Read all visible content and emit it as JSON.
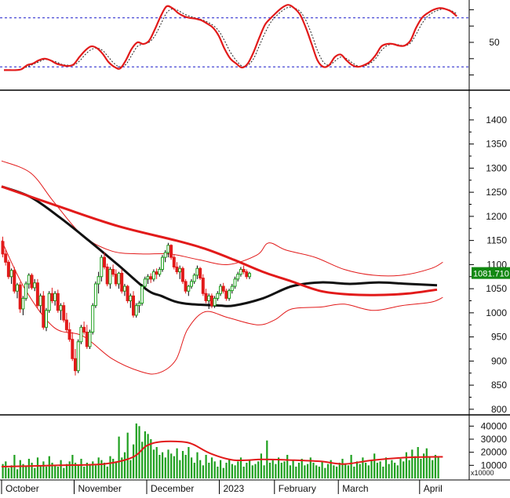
{
  "chart_data": [
    {
      "type": "line",
      "panel": "stochastic oscillator",
      "reference_levels": [
        20,
        80
      ],
      "y_tick_labels": [
        "50"
      ],
      "ylim": [
        0,
        100
      ],
      "series": [
        {
          "color": "#e21a1a",
          "values": [
            16,
            16,
            16,
            17,
            22,
            24,
            28,
            30,
            28,
            24,
            22,
            21,
            23,
            32,
            40,
            45,
            43,
            36,
            26,
            20,
            18,
            28,
            42,
            50,
            48,
            52,
            66,
            82,
            94,
            92,
            86,
            82,
            80,
            79,
            77,
            73,
            68,
            58,
            42,
            30,
            24,
            19,
            24,
            38,
            56,
            72,
            80,
            87,
            93,
            96,
            92,
            84,
            68,
            48,
            28,
            20,
            22,
            32,
            35,
            28,
            22,
            20,
            22,
            26,
            34,
            45,
            48,
            48,
            46,
            46,
            52,
            68,
            80,
            86,
            90,
            92,
            91,
            88,
            82
          ]
        },
        {
          "color": "#222222",
          "dashed": true,
          "values": [
            16,
            16,
            16,
            17,
            20,
            23,
            26,
            29,
            28,
            26,
            23,
            22,
            22,
            27,
            35,
            41,
            43,
            40,
            32,
            24,
            20,
            23,
            34,
            45,
            48,
            50,
            58,
            72,
            86,
            91,
            89,
            85,
            82,
            80,
            78,
            75,
            71,
            64,
            52,
            38,
            28,
            21,
            22,
            30,
            46,
            62,
            75,
            83,
            89,
            93,
            92,
            88,
            77,
            60,
            40,
            26,
            22,
            27,
            32,
            30,
            25,
            21,
            21,
            24,
            30,
            40,
            46,
            48,
            47,
            46,
            49,
            60,
            73,
            82,
            87,
            90,
            91,
            89,
            85
          ]
        }
      ]
    },
    {
      "type": "candlestick",
      "panel": "price",
      "ylim": [
        790,
        1460
      ],
      "y_ticks": [
        800,
        850,
        900,
        950,
        1000,
        1050,
        1100,
        1150,
        1200,
        1250,
        1300,
        1350,
        1400
      ],
      "last_price_label": "1081.710",
      "last_price": 1081.71,
      "candle_colors": {
        "up": "#1fa01f",
        "down": "#e21a1a"
      },
      "candles": [
        [
          1148,
          1158,
          1115,
          1122
        ],
        [
          1122,
          1130,
          1098,
          1105
        ],
        [
          1105,
          1110,
          1070,
          1075
        ],
        [
          1075,
          1092,
          1060,
          1088
        ],
        [
          1088,
          1095,
          1040,
          1045
        ],
        [
          1045,
          1062,
          1030,
          1058
        ],
        [
          1058,
          1064,
          1000,
          1008
        ],
        [
          1008,
          1035,
          995,
          1030
        ],
        [
          1030,
          1065,
          1025,
          1060
        ],
        [
          1060,
          1082,
          1050,
          1078
        ],
        [
          1078,
          1082,
          1048,
          1052
        ],
        [
          1052,
          1070,
          1045,
          1062
        ],
        [
          1062,
          1070,
          1010,
          1015
        ],
        [
          1015,
          1040,
          1000,
          1035
        ],
        [
          1035,
          1045,
          965,
          970
        ],
        [
          970,
          1010,
          962,
          1005
        ],
        [
          1005,
          1045,
          1000,
          1040
        ],
        [
          1040,
          1052,
          1020,
          1025
        ],
        [
          1025,
          1045,
          1015,
          1040
        ],
        [
          1040,
          1048,
          1000,
          1005
        ],
        [
          1005,
          1020,
          985,
          1015
        ],
        [
          1015,
          1022,
          980,
          985
        ],
        [
          985,
          1000,
          960,
          965
        ],
        [
          965,
          980,
          940,
          945
        ],
        [
          945,
          960,
          900,
          905
        ],
        [
          905,
          925,
          870,
          880
        ],
        [
          880,
          945,
          875,
          940
        ],
        [
          940,
          975,
          935,
          970
        ],
        [
          970,
          982,
          955,
          960
        ],
        [
          960,
          975,
          925,
          930
        ],
        [
          930,
          965,
          925,
          960
        ],
        [
          960,
          1020,
          955,
          1015
        ],
        [
          1015,
          1065,
          1010,
          1060
        ],
        [
          1060,
          1085,
          1040,
          1075
        ],
        [
          1075,
          1120,
          1065,
          1115
        ],
        [
          1115,
          1125,
          1090,
          1095
        ],
        [
          1095,
          1102,
          1055,
          1060
        ],
        [
          1060,
          1095,
          1050,
          1090
        ],
        [
          1090,
          1100,
          1075,
          1080
        ],
        [
          1080,
          1090,
          1055,
          1060
        ],
        [
          1060,
          1085,
          1050,
          1082
        ],
        [
          1082,
          1090,
          1040,
          1045
        ],
        [
          1045,
          1060,
          1035,
          1055
        ],
        [
          1055,
          1058,
          1020,
          1025
        ],
        [
          1025,
          1040,
          1010,
          1035
        ],
        [
          1035,
          1045,
          990,
          995
        ],
        [
          995,
          1020,
          990,
          1015
        ],
        [
          1015,
          1025,
          1000,
          1020
        ],
        [
          1020,
          1060,
          1015,
          1055
        ],
        [
          1055,
          1075,
          1048,
          1070
        ],
        [
          1070,
          1080,
          1060,
          1075
        ],
        [
          1075,
          1082,
          1062,
          1070
        ],
        [
          1070,
          1090,
          1065,
          1085
        ],
        [
          1085,
          1092,
          1070,
          1080
        ],
        [
          1080,
          1095,
          1075,
          1090
        ],
        [
          1090,
          1120,
          1085,
          1115
        ],
        [
          1115,
          1130,
          1105,
          1125
        ],
        [
          1125,
          1145,
          1115,
          1140
        ],
        [
          1140,
          1142,
          1110,
          1115
        ],
        [
          1115,
          1120,
          1090,
          1095
        ],
        [
          1095,
          1105,
          1080,
          1085
        ],
        [
          1085,
          1098,
          1070,
          1092
        ],
        [
          1092,
          1096,
          1060,
          1065
        ],
        [
          1065,
          1070,
          1040,
          1045
        ],
        [
          1045,
          1058,
          1035,
          1055
        ],
        [
          1055,
          1070,
          1050,
          1065
        ],
        [
          1065,
          1082,
          1060,
          1078
        ],
        [
          1078,
          1098,
          1070,
          1092
        ],
        [
          1092,
          1095,
          1068,
          1072
        ],
        [
          1072,
          1080,
          1035,
          1040
        ],
        [
          1040,
          1050,
          1020,
          1025
        ],
        [
          1025,
          1040,
          1008,
          1035
        ],
        [
          1035,
          1040,
          1010,
          1015
        ],
        [
          1015,
          1035,
          1010,
          1030
        ],
        [
          1030,
          1045,
          1025,
          1040
        ],
        [
          1040,
          1060,
          1035,
          1055
        ],
        [
          1055,
          1062,
          1040,
          1045
        ],
        [
          1045,
          1050,
          1025,
          1030
        ],
        [
          1030,
          1050,
          1025,
          1046
        ],
        [
          1046,
          1060,
          1040,
          1055
        ],
        [
          1055,
          1075,
          1050,
          1070
        ],
        [
          1070,
          1085,
          1065,
          1080
        ],
        [
          1080,
          1095,
          1075,
          1090
        ],
        [
          1090,
          1098,
          1080,
          1085
        ],
        [
          1085,
          1090,
          1070,
          1075
        ],
        [
          1075,
          1085,
          1070,
          1081.71
        ]
      ],
      "moving_averages": [
        {
          "color": "#111111",
          "points": [
            [
              0,
              1262
            ],
            [
              10,
              1240
            ],
            [
              20,
              1198
            ],
            [
              30,
              1150
            ],
            [
              40,
              1100
            ],
            [
              50,
              1048
            ],
            [
              55,
              1035
            ],
            [
              60,
              1023
            ],
            [
              65,
              1018
            ],
            [
              75,
              1015
            ],
            [
              80,
              1015
            ],
            [
              90,
              1030
            ],
            [
              100,
              1055
            ],
            [
              110,
              1063
            ],
            [
              120,
              1060
            ],
            [
              130,
              1063
            ],
            [
              140,
              1060
            ],
            [
              150,
              1057
            ]
          ]
        },
        {
          "color": "#e21a1a",
          "points": [
            [
              0,
              1262
            ],
            [
              20,
              1220
            ],
            [
              40,
              1180
            ],
            [
              60,
              1150
            ],
            [
              70,
              1133
            ],
            [
              80,
              1110
            ],
            [
              90,
              1085
            ],
            [
              100,
              1065
            ],
            [
              110,
              1045
            ],
            [
              120,
              1038
            ],
            [
              130,
              1037
            ],
            [
              140,
              1040
            ],
            [
              150,
              1048
            ]
          ]
        }
      ],
      "bollinger_bands": {
        "color": "#e21a1a",
        "upper": [
          [
            0,
            1315
          ],
          [
            10,
            1290
          ],
          [
            18,
            1230
          ],
          [
            28,
            1160
          ],
          [
            38,
            1128
          ],
          [
            48,
            1122
          ],
          [
            58,
            1122
          ],
          [
            68,
            1110
          ],
          [
            78,
            1100
          ],
          [
            88,
            1120
          ],
          [
            92,
            1145
          ],
          [
            98,
            1130
          ],
          [
            108,
            1115
          ],
          [
            118,
            1090
          ],
          [
            128,
            1078
          ],
          [
            138,
            1078
          ],
          [
            148,
            1092
          ],
          [
            152,
            1105
          ]
        ],
        "lower": [
          [
            0,
            1150
          ],
          [
            8,
            1050
          ],
          [
            18,
            970
          ],
          [
            28,
            952
          ],
          [
            38,
            905
          ],
          [
            48,
            878
          ],
          [
            54,
            875
          ],
          [
            60,
            902
          ],
          [
            64,
            965
          ],
          [
            70,
            1002
          ],
          [
            78,
            990
          ],
          [
            88,
            975
          ],
          [
            94,
            985
          ],
          [
            100,
            1008
          ],
          [
            110,
            1012
          ],
          [
            118,
            1018
          ],
          [
            128,
            1005
          ],
          [
            138,
            1015
          ],
          [
            148,
            1022
          ],
          [
            152,
            1032
          ]
        ]
      }
    },
    {
      "type": "bar",
      "panel": "volume",
      "unit_label": "x10000",
      "ylim": [
        0,
        45000
      ],
      "y_ticks": [
        10000,
        20000,
        30000,
        40000
      ],
      "x_labels": [
        {
          "label": "October",
          "index": 0
        },
        {
          "label": "November",
          "index": 25
        },
        {
          "label": "December",
          "index": 50
        },
        {
          "label": "2023",
          "index": 75
        },
        {
          "label": "February",
          "index": 94
        },
        {
          "label": "March",
          "index": 116
        },
        {
          "label": "April",
          "index": 144
        }
      ],
      "values": [
        11000,
        13000,
        8000,
        10000,
        18000,
        7000,
        14000,
        11000,
        9000,
        15000,
        12000,
        8000,
        16000,
        10000,
        13000,
        9000,
        17000,
        12000,
        10000,
        9000,
        14000,
        8000,
        11000,
        13000,
        18000,
        12000,
        10000,
        15000,
        9000,
        12000,
        11000,
        13000,
        10000,
        16000,
        14000,
        12000,
        9000,
        17000,
        15000,
        13000,
        32000,
        16000,
        20000,
        35000,
        14000,
        26000,
        42000,
        40000,
        28000,
        36000,
        34000,
        30000,
        22000,
        24000,
        18000,
        20000,
        16000,
        22000,
        19000,
        17000,
        23000,
        14000,
        21000,
        18000,
        24000,
        16000,
        12000,
        20000,
        14000,
        10000,
        18000,
        12000,
        16000,
        13000,
        9000,
        14000,
        8000,
        12000,
        15000,
        11000,
        10000,
        13000,
        16000,
        9000,
        12000,
        14000,
        10000,
        11000,
        13000,
        19000,
        10000,
        29000,
        12000,
        14000,
        11000,
        16000,
        12000,
        13000,
        18000,
        10000,
        14000,
        9000,
        12000,
        15000,
        10000,
        11000,
        16000,
        12000,
        10000,
        9000,
        13000,
        8000,
        11000,
        14000,
        10000,
        9000,
        12000,
        15000,
        11000,
        10000,
        18000,
        9000,
        13000,
        11000,
        16000,
        12000,
        10000,
        14000,
        19000,
        12000,
        13000,
        9000,
        16000,
        11000,
        14000,
        12000,
        10000,
        15000,
        13000,
        20000,
        14000,
        22000,
        17000,
        24000,
        15000,
        19000,
        23000,
        16000,
        14000,
        18000,
        17000
      ],
      "average_line": {
        "color": "#e21a1a",
        "points": [
          [
            0,
            9000
          ],
          [
            20,
            10000
          ],
          [
            35,
            11000
          ],
          [
            45,
            16000
          ],
          [
            50,
            25000
          ],
          [
            55,
            28000
          ],
          [
            62,
            28000
          ],
          [
            66,
            26000
          ],
          [
            72,
            19000
          ],
          [
            80,
            14000
          ],
          [
            90,
            14500
          ],
          [
            100,
            14000
          ],
          [
            110,
            13000
          ],
          [
            118,
            11000
          ],
          [
            128,
            14000
          ],
          [
            140,
            16000
          ],
          [
            152,
            16500
          ]
        ]
      },
      "bar_color": "#1fa01f"
    }
  ]
}
